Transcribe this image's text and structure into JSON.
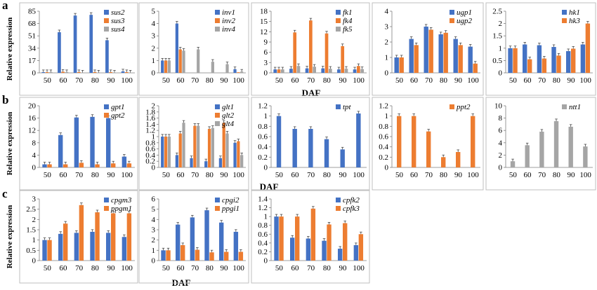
{
  "colors": {
    "blue": "#4472C4",
    "orange": "#ED7D31",
    "gray": "#A5A5A5",
    "frame": "#BFBFBF",
    "axis": "#7f7f7f"
  },
  "panel_labels": [
    "a",
    "b",
    "c"
  ],
  "ylabel": "Relative expression",
  "xlabel": "DAF",
  "chart_data": [
    {
      "type": "bar",
      "row": 0,
      "col": 0,
      "categories": [
        "50",
        "60",
        "70",
        "80",
        "90",
        "100"
      ],
      "ylim": [
        0,
        85
      ],
      "yticks": [
        "0",
        "17",
        "34",
        "51",
        "68",
        "85"
      ],
      "series": [
        {
          "name": "sus2",
          "color": "blue",
          "values": [
            1,
            56,
            79,
            80,
            45,
            2
          ]
        },
        {
          "name": "sus3",
          "color": "orange",
          "values": [
            1,
            1.5,
            1,
            1,
            1,
            1
          ]
        },
        {
          "name": "sus4",
          "color": "gray",
          "values": [
            1,
            1,
            0.5,
            0.5,
            0.5,
            0.5
          ]
        }
      ]
    },
    {
      "type": "bar",
      "row": 0,
      "col": 1,
      "categories": [
        "50",
        "60",
        "70",
        "80",
        "90",
        "100"
      ],
      "ylim": [
        0,
        5
      ],
      "yticks": [
        "0",
        "1",
        "2",
        "3",
        "4",
        "5"
      ],
      "series": [
        {
          "name": "inv1",
          "color": "blue",
          "values": [
            1,
            4,
            0,
            0,
            0,
            0.3
          ]
        },
        {
          "name": "inv2",
          "color": "orange",
          "values": [
            1,
            1.9,
            0,
            0,
            0,
            0.05
          ]
        },
        {
          "name": "inv4",
          "color": "gray",
          "values": [
            1,
            1.8,
            1.9,
            0.9,
            0.7,
            0.1
          ]
        }
      ]
    },
    {
      "type": "bar",
      "row": 0,
      "col": 2,
      "categories": [
        "50",
        "60",
        "70",
        "80",
        "90",
        "100"
      ],
      "ylim": [
        0,
        18
      ],
      "yticks": [
        "0",
        "3",
        "6",
        "9",
        "12",
        "15",
        "18"
      ],
      "series": [
        {
          "name": "fk1",
          "color": "blue",
          "values": [
            1,
            1.2,
            1.3,
            1.3,
            1,
            1
          ]
        },
        {
          "name": "fk4",
          "color": "orange",
          "values": [
            1,
            11.8,
            15.3,
            11.5,
            7.8,
            2
          ]
        },
        {
          "name": "fk5",
          "color": "gray",
          "values": [
            1,
            2,
            1.8,
            1.2,
            1.2,
            1.1
          ]
        }
      ]
    },
    {
      "type": "bar",
      "row": 0,
      "col": 3,
      "categories": [
        "50",
        "60",
        "70",
        "80",
        "90",
        "100"
      ],
      "ylim": [
        0,
        4
      ],
      "yticks": [
        "0",
        "1",
        "2",
        "3",
        "4"
      ],
      "series": [
        {
          "name": "ugp1",
          "color": "blue",
          "values": [
            1,
            2.2,
            3,
            2.5,
            2.2,
            1.7
          ]
        },
        {
          "name": "ugp2",
          "color": "orange",
          "values": [
            1,
            1.8,
            2.8,
            2.6,
            1.8,
            0.6
          ]
        }
      ]
    },
    {
      "type": "bar",
      "row": 0,
      "col": 4,
      "categories": [
        "50",
        "60",
        "70",
        "80",
        "90",
        "100"
      ],
      "ylim": [
        0,
        2.5
      ],
      "yticks": [
        "0",
        "0.5",
        "1",
        "1.5",
        "2",
        "2.5"
      ],
      "series": [
        {
          "name": "hk1",
          "color": "blue",
          "values": [
            1,
            1.15,
            1.12,
            1.05,
            0.88,
            1.15
          ]
        },
        {
          "name": "hk3",
          "color": "orange",
          "values": [
            1,
            0.55,
            0.58,
            0.7,
            0.98,
            2
          ]
        }
      ]
    },
    {
      "type": "bar",
      "row": 1,
      "col": 0,
      "categories": [
        "50",
        "60",
        "70",
        "80",
        "90",
        "100"
      ],
      "ylim": [
        0,
        20
      ],
      "yticks": [
        "0",
        "4",
        "8",
        "12",
        "16",
        "20"
      ],
      "series": [
        {
          "name": "gpt1",
          "color": "blue",
          "values": [
            1,
            10.5,
            16.2,
            16.4,
            16,
            3.5
          ]
        },
        {
          "name": "gpt2",
          "color": "orange",
          "values": [
            1,
            1,
            1.5,
            1,
            1.3,
            1.3
          ]
        }
      ]
    },
    {
      "type": "bar",
      "row": 1,
      "col": 1,
      "categories": [
        "50",
        "60",
        "70",
        "80",
        "90",
        "100"
      ],
      "ylim": [
        0,
        2
      ],
      "yticks": [
        "0",
        "0.2",
        "0.4",
        "0.6",
        "0.8",
        "1",
        "1.2",
        "1.4",
        "1.6",
        "1.8",
        "2"
      ],
      "series": [
        {
          "name": "glt1",
          "color": "blue",
          "values": [
            1,
            0.4,
            0.3,
            0.2,
            0.3,
            0.8
          ]
        },
        {
          "name": "glt2",
          "color": "orange",
          "values": [
            1,
            1.1,
            1.35,
            1.25,
            1.45,
            0.85
          ]
        },
        {
          "name": "glt4",
          "color": "gray",
          "values": [
            1,
            1.45,
            1.35,
            1.28,
            1.1,
            0.4
          ]
        }
      ]
    },
    {
      "type": "bar",
      "row": 1,
      "col": 2,
      "categories": [
        "50",
        "60",
        "70",
        "80",
        "90",
        "100"
      ],
      "ylim": [
        0,
        1.2
      ],
      "yticks": [
        "0",
        "0.2",
        "0.4",
        "0.6",
        "0.8",
        "1",
        "1.2"
      ],
      "series": [
        {
          "name": "tpt",
          "color": "blue",
          "values": [
            1,
            0.75,
            0.75,
            0.55,
            0.35,
            1.05
          ]
        }
      ]
    },
    {
      "type": "bar",
      "row": 1,
      "col": 3,
      "categories": [
        "50",
        "60",
        "70",
        "80",
        "90",
        "100"
      ],
      "ylim": [
        0,
        1.2
      ],
      "yticks": [
        "0",
        "0.2",
        "0.4",
        "0.6",
        "0.8",
        "1",
        "1.2"
      ],
      "series": [
        {
          "name": "ppt2",
          "color": "orange",
          "values": [
            1,
            1,
            0.7,
            0.2,
            0.3,
            1
          ]
        }
      ]
    },
    {
      "type": "bar",
      "row": 1,
      "col": 4,
      "categories": [
        "50",
        "60",
        "70",
        "80",
        "90",
        "100"
      ],
      "ylim": [
        0,
        10
      ],
      "yticks": [
        "0",
        "2",
        "4",
        "6",
        "8",
        "10"
      ],
      "series": [
        {
          "name": "ntt1",
          "color": "gray",
          "values": [
            1,
            3.6,
            5.8,
            7.5,
            6.6,
            3.4
          ]
        }
      ]
    },
    {
      "type": "bar",
      "row": 2,
      "col": 0,
      "categories": [
        "50",
        "60",
        "70",
        "80",
        "90",
        "100"
      ],
      "ylim": [
        0,
        3
      ],
      "yticks": [
        "0",
        "0.5",
        "1",
        "1.5",
        "2",
        "2.5",
        "3"
      ],
      "series": [
        {
          "name": "cpgm3",
          "color": "blue",
          "values": [
            1,
            1.3,
            1.35,
            1.4,
            1.35,
            1.15
          ]
        },
        {
          "name": "ppgm1",
          "color": "orange",
          "values": [
            1,
            1.8,
            2.7,
            2.35,
            2.3,
            2.3
          ]
        }
      ]
    },
    {
      "type": "bar",
      "row": 2,
      "col": 1,
      "categories": [
        "50",
        "60",
        "70",
        "80",
        "90",
        "100"
      ],
      "ylim": [
        0,
        6
      ],
      "yticks": [
        "0",
        "1",
        "2",
        "3",
        "4",
        "5",
        "6"
      ],
      "series": [
        {
          "name": "cpgi2",
          "color": "blue",
          "values": [
            1,
            3.5,
            4.2,
            4.9,
            3.7,
            2.8
          ]
        },
        {
          "name": "ppgi1",
          "color": "orange",
          "values": [
            1,
            1.5,
            1.05,
            0.8,
            0.85,
            0.85
          ]
        }
      ]
    },
    {
      "type": "bar",
      "row": 2,
      "col": 2,
      "categories": [
        "50",
        "60",
        "70",
        "80",
        "90",
        "100"
      ],
      "ylim": [
        0,
        1.4
      ],
      "yticks": [
        "0",
        "0.2",
        "0.4",
        "0.6",
        "0.8",
        "1",
        "1.2",
        "1.4"
      ],
      "series": [
        {
          "name": "cpfk2",
          "color": "blue",
          "values": [
            1,
            0.52,
            0.5,
            0.45,
            0.27,
            0.35
          ]
        },
        {
          "name": "cpfk3",
          "color": "orange",
          "values": [
            1,
            1,
            1.18,
            0.82,
            0.85,
            0.6
          ]
        }
      ]
    }
  ]
}
